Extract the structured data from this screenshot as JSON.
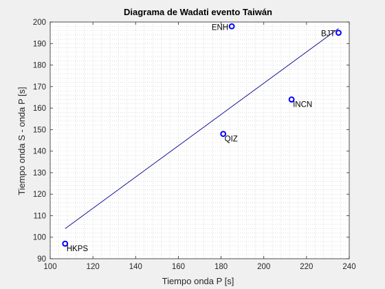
{
  "chart_data": {
    "type": "scatter",
    "title": "Diagrama de Wadati evento Taiwán",
    "xlabel": "Tiempo onda P [s]",
    "ylabel": "Tiempo onda S - onda P [s]",
    "xlim": [
      100,
      240
    ],
    "ylim": [
      90,
      200
    ],
    "xticks": [
      100,
      120,
      140,
      160,
      180,
      200,
      220,
      240
    ],
    "yticks": [
      90,
      100,
      110,
      120,
      130,
      140,
      150,
      160,
      170,
      180,
      190,
      200
    ],
    "grid": "minor-dotted",
    "points": [
      {
        "label": "HKPS",
        "x": 107,
        "y": 97,
        "label_side": "right-below"
      },
      {
        "label": "QIZ",
        "x": 181,
        "y": 148,
        "label_side": "right-below"
      },
      {
        "label": "ENH",
        "x": 185,
        "y": 198,
        "label_side": "left"
      },
      {
        "label": "INCN",
        "x": 213,
        "y": 164,
        "label_side": "right-below"
      },
      {
        "label": "BJT",
        "x": 235,
        "y": 195,
        "label_side": "left"
      }
    ],
    "fit_line": {
      "x": [
        107,
        235
      ],
      "y": [
        104,
        197
      ]
    },
    "colors": {
      "marker": "#0000ff",
      "fit_line": "#00008b",
      "axes_background": "#ffffff",
      "figure_background": "#f0f0f0"
    }
  }
}
